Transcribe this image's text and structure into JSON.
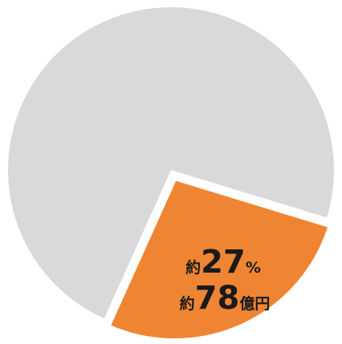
{
  "chart_data": {
    "type": "pie",
    "values": [
      27,
      73
    ],
    "value_labels": [
      "約27%",
      null
    ],
    "colors": [
      "#ef8533",
      "#d9d9d9"
    ],
    "annotation": "約78億円"
  }
}
